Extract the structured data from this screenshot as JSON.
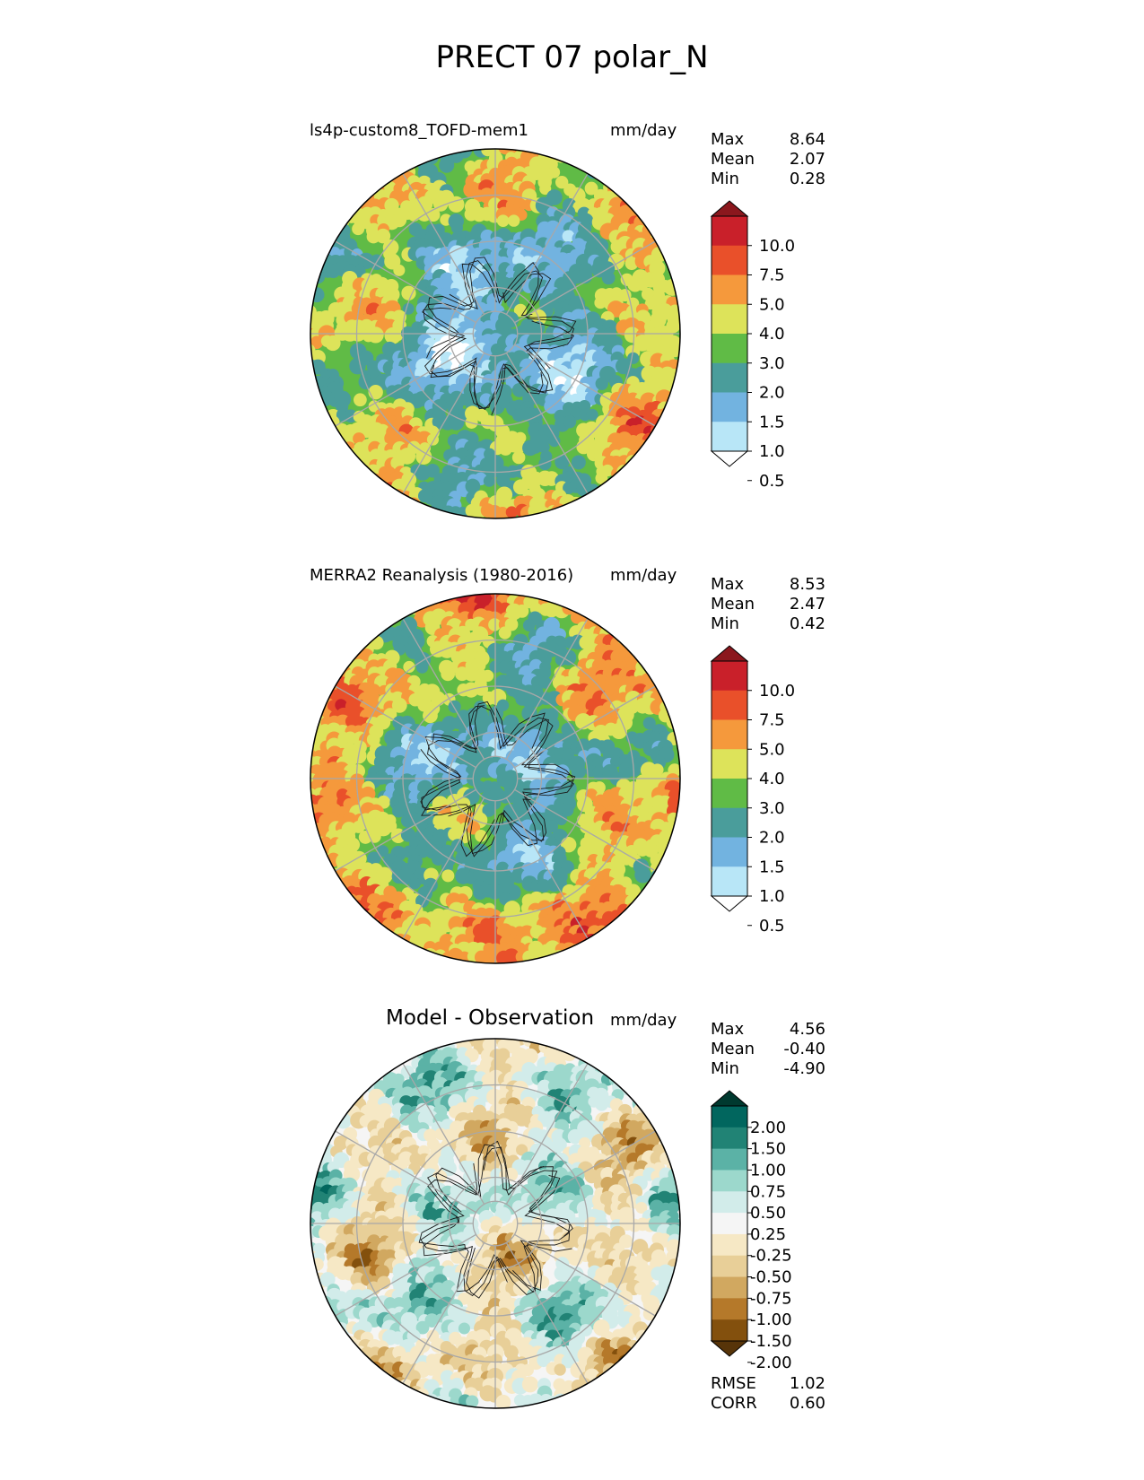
{
  "title": "PRECT 07 polar_N",
  "panels": [
    {
      "name": "test",
      "title": "ls4p-custom8_TOFD-mem1",
      "units": "mm/day",
      "stats": [
        {
          "label": "Max",
          "value": "8.64"
        },
        {
          "label": "Mean",
          "value": "2.07"
        },
        {
          "label": "Min",
          "value": "0.28"
        }
      ],
      "colorbar": {
        "ticks": [
          "10.0",
          "7.5",
          "5.0",
          "4.0",
          "3.0",
          "2.0",
          "1.5",
          "1.0",
          "0.5"
        ],
        "colors": [
          "#ffffff",
          "#b8e6f7",
          "#72b3e0",
          "#4a9d9b",
          "#60bb46",
          "#dde35a",
          "#f5993c",
          "#e9502a",
          "#c9202a",
          "#8b171d"
        ]
      }
    },
    {
      "name": "reference",
      "title": "MERRA2 Reanalysis (1980-2016)",
      "units": "mm/day",
      "stats": [
        {
          "label": "Max",
          "value": "8.53"
        },
        {
          "label": "Mean",
          "value": "2.47"
        },
        {
          "label": "Min",
          "value": "0.42"
        }
      ],
      "colorbar": {
        "ticks": [
          "10.0",
          "7.5",
          "5.0",
          "4.0",
          "3.0",
          "2.0",
          "1.5",
          "1.0",
          "0.5"
        ],
        "colors": [
          "#ffffff",
          "#b8e6f7",
          "#72b3e0",
          "#4a9d9b",
          "#60bb46",
          "#dde35a",
          "#f5993c",
          "#e9502a",
          "#c9202a",
          "#8b171d"
        ]
      }
    },
    {
      "name": "difference",
      "title": "Model - Observation",
      "units": "mm/day",
      "stats": [
        {
          "label": "Max",
          "value": "4.56"
        },
        {
          "label": "Mean",
          "value": "-0.40"
        },
        {
          "label": "Min",
          "value": "-4.90"
        }
      ],
      "metrics": [
        {
          "label": "RMSE",
          "value": "1.02"
        },
        {
          "label": "CORR",
          "value": "0.60"
        }
      ],
      "colorbar": {
        "ticks": [
          "2.00",
          "1.50",
          "1.00",
          "0.75",
          "0.50",
          "0.25",
          "-0.25",
          "-0.50",
          "-0.75",
          "-1.00",
          "-1.50",
          "-2.00"
        ],
        "colors": [
          "#573409",
          "#83500d",
          "#b5792a",
          "#d1a860",
          "#e8cf98",
          "#f6e8c5",
          "#f5f5f5",
          "#d2ecea",
          "#9cd8cc",
          "#5bb2a6",
          "#218375",
          "#01665e",
          "#00392f"
        ]
      }
    }
  ]
}
